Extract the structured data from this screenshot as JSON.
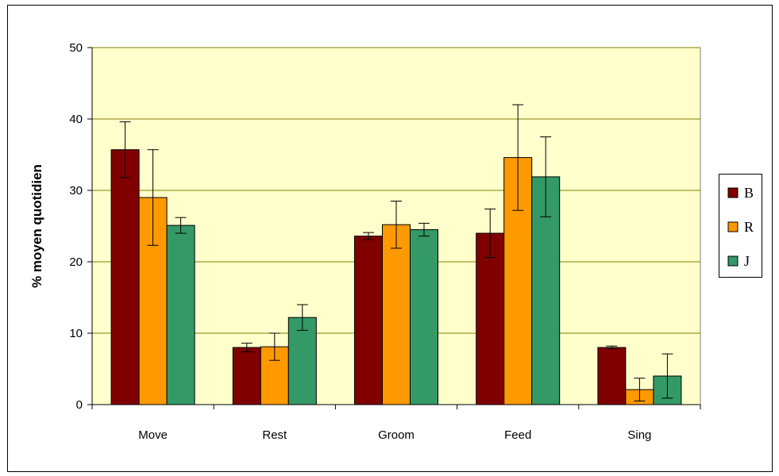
{
  "chart_data": {
    "type": "bar",
    "title": "",
    "xlabel": "",
    "ylabel": "% moyen quotidien",
    "ylim": [
      0,
      50
    ],
    "yticks": [
      0,
      10,
      20,
      30,
      40,
      50
    ],
    "grid": true,
    "legend_position": "right",
    "categories": [
      "Move",
      "Rest",
      "Groom",
      "Feed",
      "Sing"
    ],
    "series": [
      {
        "name": "B",
        "color": "#800000",
        "values": [
          35.7,
          8.0,
          23.6,
          24.0,
          8.0
        ],
        "errors": [
          3.9,
          0.6,
          0.5,
          3.4,
          0.2
        ]
      },
      {
        "name": "R",
        "color": "#FF9900",
        "values": [
          29.0,
          8.1,
          25.2,
          34.6,
          2.1
        ],
        "errors": [
          6.7,
          1.9,
          3.3,
          7.4,
          1.6
        ]
      },
      {
        "name": "J",
        "color": "#339966",
        "values": [
          25.1,
          12.2,
          24.5,
          31.9,
          4.0
        ],
        "errors": [
          1.1,
          1.8,
          0.9,
          5.6,
          3.1
        ]
      }
    ],
    "plot_background": "#FFFFCC",
    "grid_color": "#7F7F00"
  }
}
